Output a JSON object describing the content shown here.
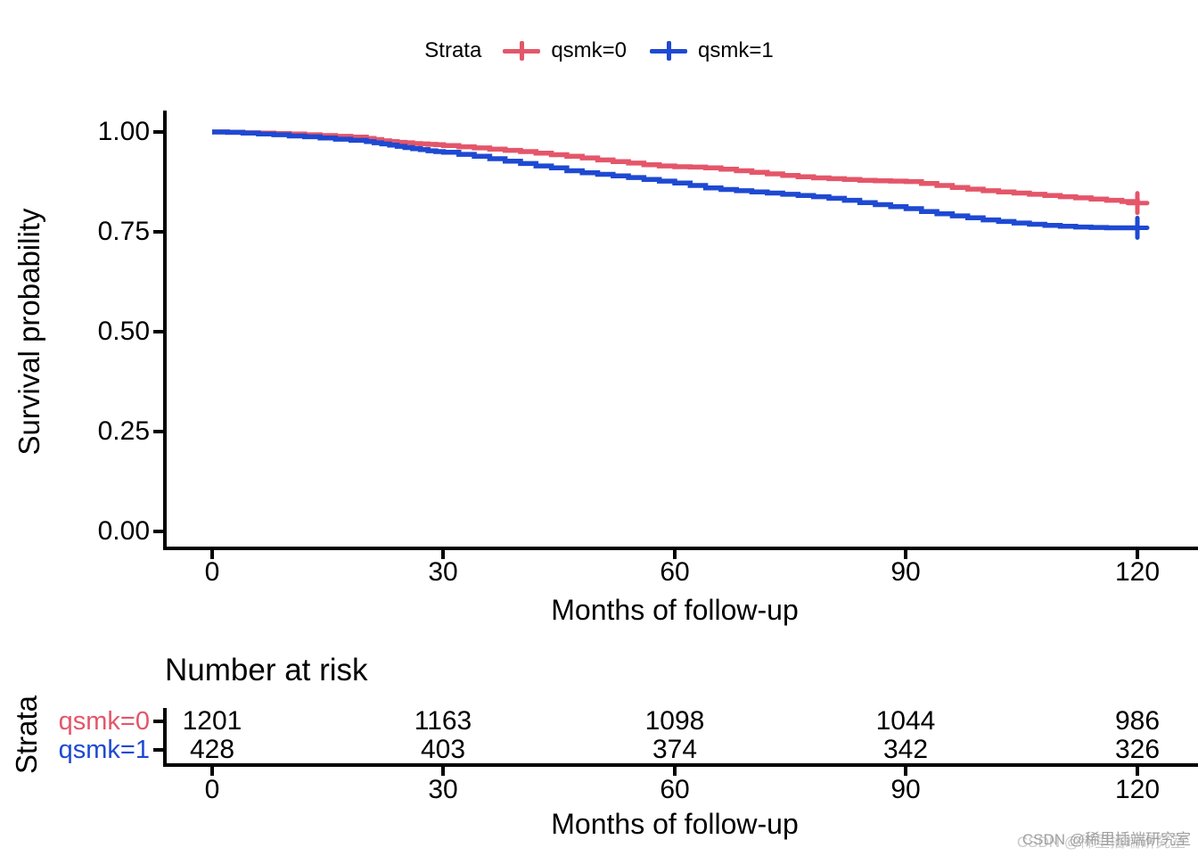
{
  "legend": {
    "title": "Strata",
    "items": [
      {
        "label": "qsmk=0",
        "color": "#E4566A"
      },
      {
        "label": "qsmk=1",
        "color": "#1E49D2"
      }
    ]
  },
  "chart_data": {
    "type": "line",
    "subtype": "kaplan-meier-step",
    "title": "",
    "xlabel": "Months of follow-up",
    "ylabel": "Survival probability",
    "xlim": [
      0,
      120
    ],
    "ylim": [
      0.0,
      1.0
    ],
    "x_ticks": [
      0,
      30,
      60,
      90,
      120
    ],
    "x_tick_labels": [
      "0",
      "30",
      "60",
      "90",
      "120"
    ],
    "y_ticks": [
      1.0,
      0.75,
      0.5,
      0.25,
      0.0
    ],
    "y_tick_labels": [
      "1.00",
      "0.75",
      "0.50",
      "0.25",
      "0.00"
    ],
    "grid": "off",
    "legend_position": "top",
    "series": [
      {
        "name": "qsmk=0",
        "color": "#E4566A",
        "censor_mark_at_end": true,
        "points": [
          [
            0,
            1.0
          ],
          [
            2,
            0.999
          ],
          [
            4,
            0.998
          ],
          [
            6,
            0.997
          ],
          [
            8,
            0.996
          ],
          [
            10,
            0.995
          ],
          [
            12,
            0.993
          ],
          [
            14,
            0.991
          ],
          [
            16,
            0.989
          ],
          [
            18,
            0.987
          ],
          [
            20,
            0.984
          ],
          [
            21,
            0.981
          ],
          [
            22,
            0.978
          ],
          [
            23,
            0.976
          ],
          [
            24,
            0.974
          ],
          [
            25,
            0.973
          ],
          [
            26,
            0.971
          ],
          [
            27,
            0.97
          ],
          [
            28,
            0.969
          ],
          [
            29,
            0.968
          ],
          [
            30,
            0.966
          ],
          [
            32,
            0.963
          ],
          [
            34,
            0.96
          ],
          [
            36,
            0.957
          ],
          [
            38,
            0.954
          ],
          [
            40,
            0.951
          ],
          [
            42,
            0.947
          ],
          [
            44,
            0.943
          ],
          [
            46,
            0.939
          ],
          [
            48,
            0.935
          ],
          [
            50,
            0.93
          ],
          [
            52,
            0.926
          ],
          [
            54,
            0.922
          ],
          [
            56,
            0.918
          ],
          [
            58,
            0.915
          ],
          [
            60,
            0.913
          ],
          [
            62,
            0.912
          ],
          [
            64,
            0.91
          ],
          [
            66,
            0.907
          ],
          [
            68,
            0.903
          ],
          [
            70,
            0.899
          ],
          [
            72,
            0.895
          ],
          [
            74,
            0.891
          ],
          [
            76,
            0.888
          ],
          [
            78,
            0.885
          ],
          [
            80,
            0.883
          ],
          [
            82,
            0.881
          ],
          [
            84,
            0.879
          ],
          [
            86,
            0.878
          ],
          [
            88,
            0.877
          ],
          [
            90,
            0.876
          ],
          [
            92,
            0.871
          ],
          [
            94,
            0.866
          ],
          [
            96,
            0.861
          ],
          [
            98,
            0.857
          ],
          [
            100,
            0.853
          ],
          [
            102,
            0.85
          ],
          [
            104,
            0.847
          ],
          [
            106,
            0.844
          ],
          [
            108,
            0.841
          ],
          [
            110,
            0.838
          ],
          [
            112,
            0.835
          ],
          [
            114,
            0.832
          ],
          [
            116,
            0.829
          ],
          [
            118,
            0.826
          ],
          [
            120,
            0.822
          ]
        ]
      },
      {
        "name": "qsmk=1",
        "color": "#1E49D2",
        "censor_mark_at_end": true,
        "points": [
          [
            0,
            1.0
          ],
          [
            2,
            0.999
          ],
          [
            4,
            0.997
          ],
          [
            6,
            0.995
          ],
          [
            8,
            0.993
          ],
          [
            10,
            0.99
          ],
          [
            12,
            0.988
          ],
          [
            14,
            0.985
          ],
          [
            16,
            0.982
          ],
          [
            18,
            0.979
          ],
          [
            20,
            0.976
          ],
          [
            21,
            0.973
          ],
          [
            22,
            0.97
          ],
          [
            23,
            0.967
          ],
          [
            24,
            0.964
          ],
          [
            25,
            0.961
          ],
          [
            26,
            0.958
          ],
          [
            27,
            0.956
          ],
          [
            28,
            0.953
          ],
          [
            29,
            0.951
          ],
          [
            30,
            0.949
          ],
          [
            32,
            0.944
          ],
          [
            34,
            0.939
          ],
          [
            36,
            0.933
          ],
          [
            38,
            0.927
          ],
          [
            40,
            0.921
          ],
          [
            42,
            0.915
          ],
          [
            44,
            0.91
          ],
          [
            46,
            0.903
          ],
          [
            48,
            0.898
          ],
          [
            50,
            0.894
          ],
          [
            52,
            0.89
          ],
          [
            54,
            0.886
          ],
          [
            56,
            0.881
          ],
          [
            58,
            0.877
          ],
          [
            60,
            0.872
          ],
          [
            62,
            0.866
          ],
          [
            64,
            0.86
          ],
          [
            66,
            0.856
          ],
          [
            68,
            0.853
          ],
          [
            70,
            0.85
          ],
          [
            72,
            0.847
          ],
          [
            74,
            0.844
          ],
          [
            76,
            0.841
          ],
          [
            78,
            0.838
          ],
          [
            80,
            0.834
          ],
          [
            82,
            0.829
          ],
          [
            84,
            0.823
          ],
          [
            86,
            0.818
          ],
          [
            88,
            0.813
          ],
          [
            90,
            0.808
          ],
          [
            92,
            0.801
          ],
          [
            94,
            0.795
          ],
          [
            96,
            0.79
          ],
          [
            98,
            0.785
          ],
          [
            100,
            0.78
          ],
          [
            102,
            0.776
          ],
          [
            104,
            0.772
          ],
          [
            106,
            0.769
          ],
          [
            108,
            0.766
          ],
          [
            110,
            0.764
          ],
          [
            112,
            0.762
          ],
          [
            114,
            0.761
          ],
          [
            116,
            0.76
          ],
          [
            118,
            0.76
          ],
          [
            120,
            0.76
          ]
        ]
      }
    ]
  },
  "risk_table": {
    "title": "Number at risk",
    "axis_label": "Strata",
    "xlabel": "Months of follow-up",
    "x_tick_labels": [
      "0",
      "30",
      "60",
      "90",
      "120"
    ],
    "rows": [
      {
        "label": "qsmk=0",
        "color": "#E4566A",
        "values": [
          1201,
          1163,
          1098,
          1044,
          986
        ]
      },
      {
        "label": "qsmk=1",
        "color": "#1E49D2",
        "values": [
          428,
          403,
          374,
          342,
          326
        ]
      }
    ]
  },
  "watermark": "CSDN @稀里插端研究室"
}
